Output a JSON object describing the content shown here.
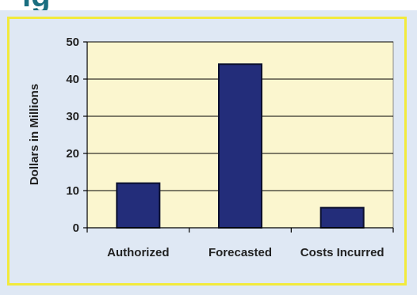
{
  "header": {
    "clipped_title": "ig"
  },
  "colors": {
    "plot_bg": "#fbf6cf",
    "bar_fill": "#232d7a",
    "bar_edge": "#0b0f2e",
    "frame_bg": "#dfe8f4",
    "frame_border": "#f2ea3c"
  },
  "chart_data": {
    "type": "bar",
    "title": "",
    "xlabel": "",
    "ylabel": "Dollars in Millions",
    "categories": [
      "Authorized",
      "Forecasted",
      "Costs Incurred"
    ],
    "values": [
      12,
      44,
      5.4
    ],
    "ylim": [
      0,
      50
    ],
    "yticks": [
      0,
      10,
      20,
      30,
      40,
      50
    ],
    "grid": true,
    "legend": "none"
  }
}
